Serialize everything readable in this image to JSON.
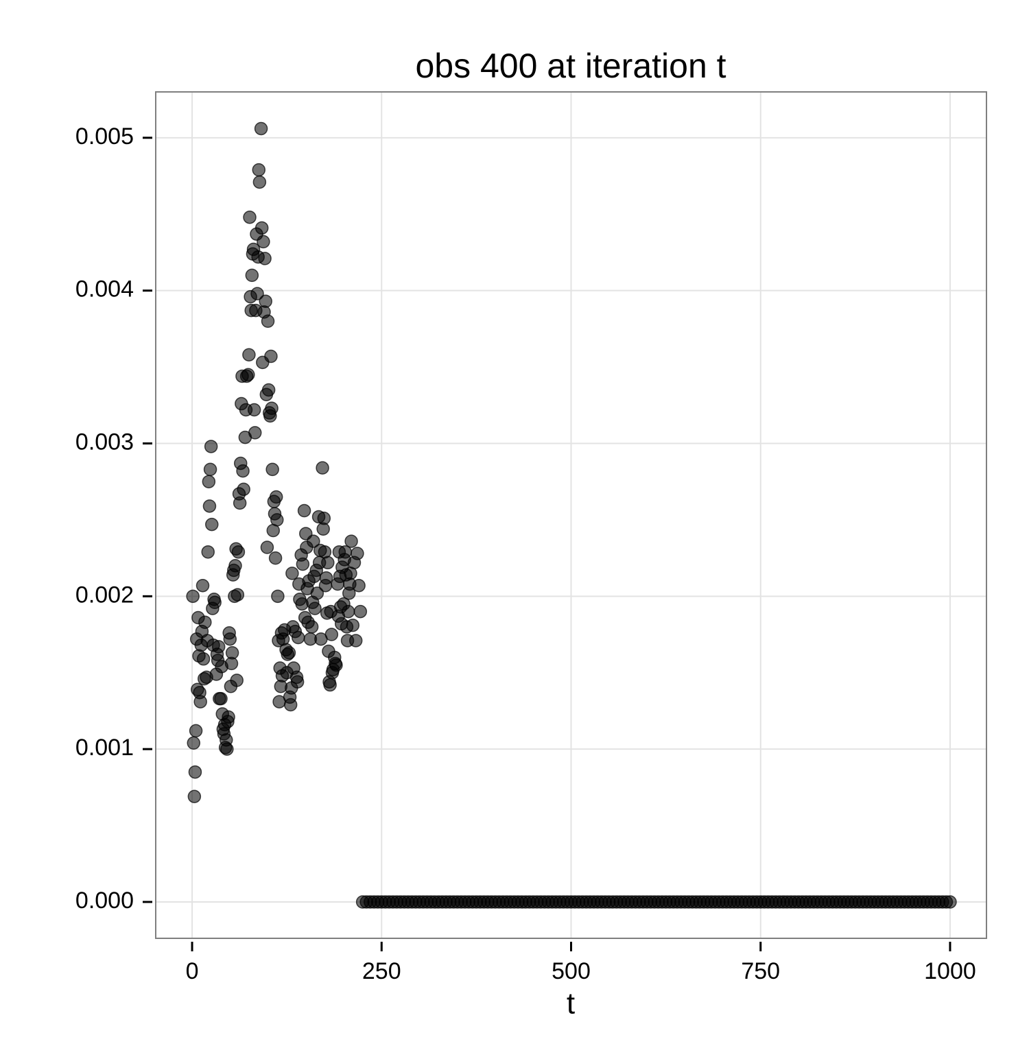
{
  "chart_data": {
    "type": "scatter",
    "title": "obs 400 at iteration t",
    "x_label": "t",
    "color": "#000000",
    "grid": true,
    "xlim": [
      -48,
      1048
    ],
    "ylim": [
      -0.000238,
      0.0053
    ],
    "xticks": [
      0,
      250,
      500,
      750,
      1000
    ],
    "yticks": [
      {
        "value": 0,
        "label": "0.000"
      },
      0.001,
      0.002,
      0.003,
      0.004,
      0.005
    ],
    "x": [
      1,
      2,
      3,
      4,
      5,
      6,
      7,
      8,
      9,
      10,
      11,
      12,
      13,
      14,
      15,
      16,
      17,
      19,
      20,
      21,
      22,
      23,
      24,
      25,
      26,
      27,
      28,
      29,
      30,
      32,
      33,
      34,
      35,
      36,
      38,
      39,
      40,
      41,
      42,
      43,
      44,
      45,
      46,
      47,
      48,
      49,
      50,
      51,
      52,
      53,
      54,
      55,
      56,
      57,
      58,
      59,
      60,
      61,
      62,
      63,
      64,
      65,
      66,
      67,
      68,
      70,
      71,
      72,
      74,
      75,
      76,
      77,
      78,
      79,
      80,
      81,
      82,
      83,
      84,
      85,
      86,
      87,
      88,
      89,
      91,
      92,
      93,
      94,
      95,
      96,
      97,
      98,
      99,
      100,
      101,
      102,
      103,
      104,
      105,
      106,
      107,
      108,
      109,
      110,
      111,
      112,
      113,
      114,
      115,
      116,
      117,
      118,
      119,
      120,
      122,
      124,
      125,
      126,
      128,
      129,
      130,
      131,
      132,
      133,
      134,
      136,
      138,
      139,
      140,
      141,
      142,
      144,
      145,
      146,
      148,
      149,
      150,
      151,
      152,
      153,
      154,
      156,
      158,
      159,
      160,
      161,
      162,
      164,
      165,
      167,
      168,
      169,
      170,
      172,
      173,
      174,
      175,
      176,
      177,
      178,
      179,
      180,
      181,
      182,
      183,
      184,
      185,
      186,
      188,
      189,
      190,
      192,
      193,
      194,
      195,
      196,
      197,
      198,
      200,
      201,
      202,
      203,
      204,
      205,
      206,
      207,
      208,
      209,
      210,
      212,
      214,
      216,
      218,
      220,
      222,
      225,
      230,
      235,
      240,
      245,
      250,
      255,
      260,
      265,
      270,
      275,
      280,
      285,
      290,
      295,
      300,
      305,
      310,
      315,
      320,
      325,
      330,
      335,
      340,
      345,
      350,
      355,
      360,
      365,
      370,
      375,
      380,
      385,
      390,
      395,
      400,
      405,
      410,
      415,
      420,
      425,
      430,
      435,
      440,
      445,
      450,
      455,
      460,
      465,
      470,
      475,
      480,
      485,
      490,
      495,
      500,
      505,
      510,
      515,
      520,
      525,
      530,
      535,
      540,
      545,
      550,
      555,
      560,
      565,
      570,
      575,
      580,
      585,
      590,
      595,
      600,
      605,
      610,
      615,
      620,
      625,
      630,
      635,
      640,
      645,
      650,
      655,
      660,
      665,
      670,
      675,
      680,
      685,
      690,
      695,
      700,
      705,
      710,
      715,
      720,
      725,
      730,
      735,
      740,
      745,
      750,
      755,
      760,
      765,
      770,
      775,
      780,
      785,
      790,
      795,
      800,
      805,
      810,
      815,
      820,
      825,
      830,
      835,
      840,
      845,
      850,
      855,
      860,
      865,
      870,
      875,
      880,
      885,
      890,
      895,
      900,
      905,
      910,
      915,
      920,
      925,
      930,
      935,
      940,
      945,
      950,
      955,
      960,
      965,
      970,
      975,
      980,
      985,
      990,
      995,
      1000
    ],
    "values": [
      0.002,
      0.00104,
      0.00069,
      0.00085,
      0.00112,
      0.00172,
      0.00139,
      0.00186,
      0.00161,
      0.00137,
      0.00131,
      0.00168,
      0.00177,
      0.00207,
      0.00159,
      0.00146,
      0.00183,
      0.00147,
      0.00171,
      0.00229,
      0.00275,
      0.00259,
      0.00283,
      0.00298,
      0.00247,
      0.00192,
      0.00168,
      0.00198,
      0.00196,
      0.00149,
      0.00162,
      0.00158,
      0.00167,
      0.00133,
      0.00133,
      0.00154,
      0.00123,
      0.00113,
      0.0011,
      0.00116,
      0.00101,
      0.00106,
      0.001,
      0.00118,
      0.00121,
      0.00176,
      0.00172,
      0.00141,
      0.00156,
      0.00163,
      0.00214,
      0.00217,
      0.002,
      0.0022,
      0.00231,
      0.00145,
      0.00201,
      0.00229,
      0.00267,
      0.00261,
      0.00287,
      0.00326,
      0.00344,
      0.00282,
      0.0027,
      0.00304,
      0.00322,
      0.00344,
      0.00345,
      0.00358,
      0.00448,
      0.00396,
      0.00387,
      0.0041,
      0.00424,
      0.00427,
      0.00322,
      0.00307,
      0.00387,
      0.00437,
      0.00398,
      0.00422,
      0.00479,
      0.00471,
      0.00506,
      0.00441,
      0.00353,
      0.00432,
      0.00386,
      0.00421,
      0.00393,
      0.00332,
      0.00232,
      0.0038,
      0.00335,
      0.0032,
      0.00318,
      0.00357,
      0.00323,
      0.00283,
      0.00243,
      0.00262,
      0.00254,
      0.00225,
      0.00265,
      0.0025,
      0.002,
      0.00171,
      0.00131,
      0.00153,
      0.00141,
      0.00176,
      0.00148,
      0.00172,
      0.00178,
      0.00165,
      0.0015,
      0.00162,
      0.00163,
      0.00134,
      0.00129,
      0.0014,
      0.00215,
      0.0018,
      0.00153,
      0.00177,
      0.00147,
      0.00144,
      0.00173,
      0.00208,
      0.00198,
      0.00227,
      0.00195,
      0.00221,
      0.00256,
      0.00186,
      0.00241,
      0.00232,
      0.00205,
      0.00183,
      0.0021,
      0.00172,
      0.0018,
      0.00196,
      0.00236,
      0.00213,
      0.00192,
      0.00217,
      0.00202,
      0.00252,
      0.00222,
      0.0023,
      0.00172,
      0.00284,
      0.00244,
      0.00251,
      0.00229,
      0.00207,
      0.00212,
      0.00189,
      0.00222,
      0.00164,
      0.00144,
      0.00142,
      0.0019,
      0.00175,
      0.0015,
      0.00152,
      0.0016,
      0.00156,
      0.00155,
      0.00208,
      0.00187,
      0.00229,
      0.00213,
      0.00193,
      0.00182,
      0.00219,
      0.00195,
      0.00224,
      0.00229,
      0.00214,
      0.0018,
      0.00171,
      0.0019,
      0.00202,
      0.00208,
      0.00215,
      0.00236,
      0.00181,
      0.00222,
      0.00171,
      0.00228,
      0.00207,
      0.0019,
      0,
      0,
      0,
      0,
      0,
      0,
      0,
      0,
      0,
      0,
      0,
      0,
      0,
      0,
      0,
      0,
      0,
      0,
      0,
      0,
      0,
      0,
      0,
      0,
      0,
      0,
      0,
      0,
      0,
      0,
      0,
      0,
      0,
      0,
      0,
      0,
      0,
      0,
      0,
      0,
      0,
      0,
      0,
      0,
      0,
      0,
      0,
      0,
      0,
      0,
      0,
      0,
      0,
      0,
      0,
      0,
      0,
      0,
      0,
      0,
      0,
      0,
      0,
      0,
      0,
      0,
      0,
      0,
      0,
      0,
      0,
      0,
      0,
      0,
      0,
      0,
      0,
      0,
      0,
      0,
      0,
      0,
      0,
      0,
      0,
      0,
      0,
      0,
      0,
      0,
      0,
      0,
      0,
      0,
      0,
      0,
      0,
      0,
      0,
      0,
      0,
      0,
      0,
      0,
      0,
      0,
      0,
      0,
      0,
      0,
      0,
      0,
      0,
      0,
      0,
      0,
      0,
      0,
      0,
      0,
      0,
      0,
      0,
      0,
      0,
      0,
      0,
      0,
      0,
      0,
      0,
      0,
      0,
      0,
      0,
      0,
      0,
      0,
      0,
      0,
      0,
      0,
      0,
      0,
      0,
      0,
      0,
      0,
      0,
      0,
      0,
      0,
      0,
      0,
      0,
      0
    ]
  }
}
